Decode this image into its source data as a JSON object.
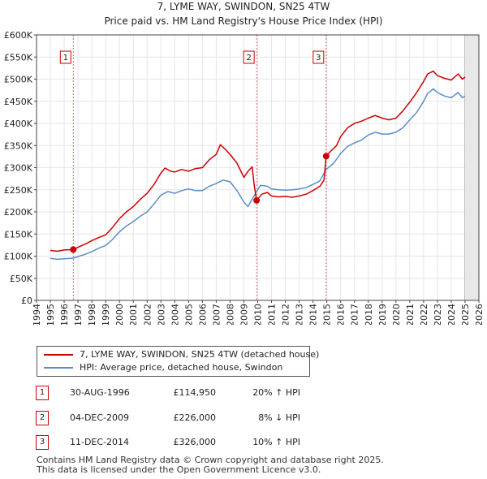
{
  "chart_data": {
    "type": "line",
    "title": "7, LYME WAY, SWINDON, SN25 4TW",
    "subtitle": "Price paid vs. HM Land Registry's House Price Index (HPI)",
    "xlim": [
      1994,
      2026
    ],
    "ylim": [
      0,
      600000
    ],
    "x_ticks": [
      "1994",
      "1995",
      "1996",
      "1997",
      "1998",
      "1999",
      "2000",
      "2001",
      "2002",
      "2003",
      "2004",
      "2005",
      "2006",
      "2007",
      "2008",
      "2009",
      "2010",
      "2011",
      "2012",
      "2013",
      "2014",
      "2015",
      "2016",
      "2017",
      "2018",
      "2019",
      "2020",
      "2021",
      "2022",
      "2023",
      "2024",
      "2025",
      "2026"
    ],
    "y_ticks": [
      {
        "value": 0,
        "label": "£0"
      },
      {
        "value": 50000,
        "label": "£50K"
      },
      {
        "value": 100000,
        "label": "£100K"
      },
      {
        "value": 150000,
        "label": "£150K"
      },
      {
        "value": 200000,
        "label": "£200K"
      },
      {
        "value": 250000,
        "label": "£250K"
      },
      {
        "value": 300000,
        "label": "£300K"
      },
      {
        "value": 350000,
        "label": "£350K"
      },
      {
        "value": 400000,
        "label": "£400K"
      },
      {
        "value": 450000,
        "label": "£450K"
      },
      {
        "value": 500000,
        "label": "£500K"
      },
      {
        "value": 550000,
        "label": "£550K"
      },
      {
        "value": 600000,
        "label": "£600K"
      }
    ],
    "series": [
      {
        "name": "7, LYME WAY, SWINDON, SN25 4TW (detached house)",
        "color": "#cc0000",
        "points": [
          [
            1995.0,
            113000
          ],
          [
            1995.5,
            111000
          ],
          [
            1996.0,
            114000
          ],
          [
            1996.67,
            114950
          ],
          [
            1997.0,
            120000
          ],
          [
            1997.5,
            127000
          ],
          [
            1998.0,
            135000
          ],
          [
            1998.5,
            142000
          ],
          [
            1999.0,
            148000
          ],
          [
            1999.5,
            165000
          ],
          [
            2000.0,
            185000
          ],
          [
            2000.5,
            200000
          ],
          [
            2001.0,
            212000
          ],
          [
            2001.5,
            228000
          ],
          [
            2002.0,
            242000
          ],
          [
            2002.5,
            262000
          ],
          [
            2003.0,
            288000
          ],
          [
            2003.3,
            299000
          ],
          [
            2003.7,
            292000
          ],
          [
            2004.0,
            290000
          ],
          [
            2004.5,
            296000
          ],
          [
            2005.0,
            292000
          ],
          [
            2005.5,
            298000
          ],
          [
            2006.0,
            300000
          ],
          [
            2006.5,
            318000
          ],
          [
            2007.0,
            330000
          ],
          [
            2007.3,
            352000
          ],
          [
            2007.7,
            340000
          ],
          [
            2008.0,
            330000
          ],
          [
            2008.5,
            310000
          ],
          [
            2009.0,
            278000
          ],
          [
            2009.3,
            292000
          ],
          [
            2009.6,
            302000
          ],
          [
            2009.75,
            260000
          ],
          [
            2009.92,
            226000
          ],
          [
            2010.3,
            240000
          ],
          [
            2010.7,
            244000
          ],
          [
            2011.0,
            236000
          ],
          [
            2011.5,
            234000
          ],
          [
            2012.0,
            235000
          ],
          [
            2012.5,
            233000
          ],
          [
            2013.0,
            236000
          ],
          [
            2013.5,
            240000
          ],
          [
            2014.0,
            248000
          ],
          [
            2014.5,
            258000
          ],
          [
            2014.8,
            272000
          ],
          [
            2014.95,
            326000
          ],
          [
            2015.3,
            338000
          ],
          [
            2015.7,
            350000
          ],
          [
            2016.0,
            370000
          ],
          [
            2016.5,
            390000
          ],
          [
            2017.0,
            400000
          ],
          [
            2017.5,
            405000
          ],
          [
            2018.0,
            412000
          ],
          [
            2018.5,
            418000
          ],
          [
            2019.0,
            412000
          ],
          [
            2019.5,
            408000
          ],
          [
            2020.0,
            412000
          ],
          [
            2020.5,
            428000
          ],
          [
            2021.0,
            448000
          ],
          [
            2021.5,
            470000
          ],
          [
            2022.0,
            495000
          ],
          [
            2022.3,
            512000
          ],
          [
            2022.7,
            518000
          ],
          [
            2023.0,
            508000
          ],
          [
            2023.5,
            502000
          ],
          [
            2024.0,
            498000
          ],
          [
            2024.5,
            512000
          ],
          [
            2024.8,
            500000
          ],
          [
            2025.0,
            505000
          ]
        ]
      },
      {
        "name": "HPI: Average price, detached house, Swindon",
        "color": "#5b8dc9",
        "points": [
          [
            1995.0,
            95000
          ],
          [
            1995.5,
            93000
          ],
          [
            1996.0,
            94000
          ],
          [
            1996.67,
            95500
          ],
          [
            1997.0,
            99000
          ],
          [
            1997.5,
            104000
          ],
          [
            1998.0,
            110000
          ],
          [
            1998.5,
            118000
          ],
          [
            1999.0,
            124000
          ],
          [
            1999.5,
            138000
          ],
          [
            2000.0,
            155000
          ],
          [
            2000.5,
            168000
          ],
          [
            2001.0,
            178000
          ],
          [
            2001.5,
            190000
          ],
          [
            2002.0,
            200000
          ],
          [
            2002.5,
            218000
          ],
          [
            2003.0,
            238000
          ],
          [
            2003.5,
            246000
          ],
          [
            2004.0,
            242000
          ],
          [
            2004.5,
            248000
          ],
          [
            2005.0,
            252000
          ],
          [
            2005.5,
            248000
          ],
          [
            2006.0,
            248000
          ],
          [
            2006.5,
            258000
          ],
          [
            2007.0,
            264000
          ],
          [
            2007.5,
            272000
          ],
          [
            2008.0,
            268000
          ],
          [
            2008.5,
            248000
          ],
          [
            2009.0,
            222000
          ],
          [
            2009.3,
            212000
          ],
          [
            2009.92,
            246000
          ],
          [
            2010.2,
            260000
          ],
          [
            2010.7,
            258000
          ],
          [
            2011.0,
            252000
          ],
          [
            2011.5,
            250000
          ],
          [
            2012.0,
            249000
          ],
          [
            2012.5,
            250000
          ],
          [
            2013.0,
            252000
          ],
          [
            2013.5,
            255000
          ],
          [
            2014.0,
            262000
          ],
          [
            2014.5,
            270000
          ],
          [
            2014.95,
            296000
          ],
          [
            2015.5,
            310000
          ],
          [
            2016.0,
            332000
          ],
          [
            2016.5,
            348000
          ],
          [
            2017.0,
            356000
          ],
          [
            2017.5,
            362000
          ],
          [
            2018.0,
            374000
          ],
          [
            2018.5,
            380000
          ],
          [
            2019.0,
            376000
          ],
          [
            2019.5,
            376000
          ],
          [
            2020.0,
            380000
          ],
          [
            2020.5,
            390000
          ],
          [
            2021.0,
            408000
          ],
          [
            2021.5,
            425000
          ],
          [
            2022.0,
            450000
          ],
          [
            2022.3,
            468000
          ],
          [
            2022.7,
            478000
          ],
          [
            2023.0,
            470000
          ],
          [
            2023.5,
            462000
          ],
          [
            2024.0,
            458000
          ],
          [
            2024.5,
            470000
          ],
          [
            2024.8,
            458000
          ],
          [
            2025.0,
            462000
          ]
        ]
      }
    ],
    "sale_markers": [
      {
        "label": "1",
        "x": 1996.66,
        "y": 114950
      },
      {
        "label": "2",
        "x": 2009.92,
        "y": 226000
      },
      {
        "label": "3",
        "x": 2014.95,
        "y": 326000
      }
    ],
    "future_from": 2025.0,
    "legend_position": "bottom-left"
  },
  "legend": {
    "property_label": "7, LYME WAY, SWINDON, SN25 4TW (detached house)",
    "hpi_label": "HPI: Average price, detached house, Swindon",
    "property_color": "#cc0000",
    "hpi_color": "#5b8dc9"
  },
  "sales": [
    {
      "num": "1",
      "date": "30-AUG-1996",
      "price": "£114,950",
      "hpi": "20% ↑ HPI"
    },
    {
      "num": "2",
      "date": "04-DEC-2009",
      "price": "£226,000",
      "hpi": "8% ↓ HPI"
    },
    {
      "num": "3",
      "date": "11-DEC-2014",
      "price": "£326,000",
      "hpi": "10% ↑ HPI"
    }
  ],
  "footer": {
    "line1": "Contains HM Land Registry data © Crown copyright and database right 2025.",
    "line2": "This data is licensed under the Open Government Licence v3.0."
  }
}
